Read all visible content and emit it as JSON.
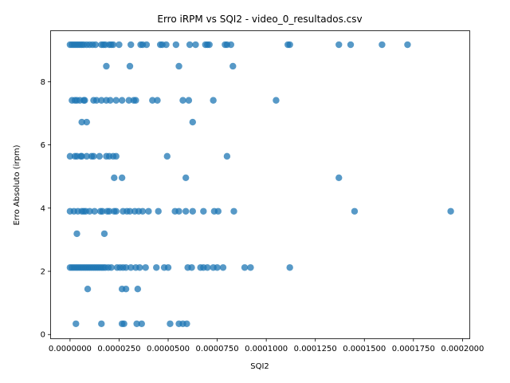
{
  "chart_data": {
    "type": "scatter",
    "title": "Erro iRPM vs SQI2 - video_0_resultados.csv",
    "xlabel": "SQI2",
    "ylabel": "Erro Absoluto (irpm)",
    "xlim": [
      -9.7e-06,
      0.0002035
    ],
    "ylim": [
      -0.12,
      9.6
    ],
    "xticks": [
      0,
      2.5e-05,
      5e-05,
      7.5e-05,
      0.0001,
      0.000125,
      0.00015,
      0.000175,
      0.0002
    ],
    "xtick_labels": [
      "0.0000000",
      "0.0000250",
      "0.0000500",
      "0.0000750",
      "0.0001000",
      "0.0001250",
      "0.0001500",
      "0.0001750",
      "0.0002000"
    ],
    "yticks": [
      0,
      2,
      4,
      6,
      8
    ],
    "ytick_labels": [
      "0",
      "2",
      "4",
      "6",
      "8"
    ],
    "grid": false,
    "marker_color": "#1f77b4",
    "series": [
      {
        "name": "erro_vs_sqi2",
        "points": [
          {
            "x": 0.0,
            "y": 9.17
          },
          {
            "x": 1e-06,
            "y": 9.17
          },
          {
            "x": 2e-06,
            "y": 9.17
          },
          {
            "x": 3e-06,
            "y": 9.17
          },
          {
            "x": 4e-06,
            "y": 9.17
          },
          {
            "x": 5e-06,
            "y": 9.17
          },
          {
            "x": 6e-06,
            "y": 9.17
          },
          {
            "x": 7e-06,
            "y": 9.17
          },
          {
            "x": 8.5e-06,
            "y": 9.17
          },
          {
            "x": 1e-05,
            "y": 9.17
          },
          {
            "x": 1.15e-05,
            "y": 9.17
          },
          {
            "x": 1.3e-05,
            "y": 9.17
          },
          {
            "x": 1.6e-05,
            "y": 9.17
          },
          {
            "x": 1.7e-05,
            "y": 9.17
          },
          {
            "x": 1.8e-05,
            "y": 9.17
          },
          {
            "x": 2e-05,
            "y": 9.17
          },
          {
            "x": 2.1e-05,
            "y": 9.17
          },
          {
            "x": 2.2e-05,
            "y": 9.17
          },
          {
            "x": 2.5e-05,
            "y": 9.17
          },
          {
            "x": 3.1e-05,
            "y": 9.17
          },
          {
            "x": 3.6e-05,
            "y": 9.17
          },
          {
            "x": 3.7e-05,
            "y": 9.17
          },
          {
            "x": 3.9e-05,
            "y": 9.17
          },
          {
            "x": 4.6e-05,
            "y": 9.17
          },
          {
            "x": 4.7e-05,
            "y": 9.17
          },
          {
            "x": 4.9e-05,
            "y": 9.17
          },
          {
            "x": 5.4e-05,
            "y": 9.17
          },
          {
            "x": 6.1e-05,
            "y": 9.17
          },
          {
            "x": 6.4e-05,
            "y": 9.17
          },
          {
            "x": 6.9e-05,
            "y": 9.17
          },
          {
            "x": 7e-05,
            "y": 9.17
          },
          {
            "x": 7.1e-05,
            "y": 9.17
          },
          {
            "x": 7.9e-05,
            "y": 9.17
          },
          {
            "x": 8e-05,
            "y": 9.17
          },
          {
            "x": 8.2e-05,
            "y": 9.17
          },
          {
            "x": 0.000111,
            "y": 9.17
          },
          {
            "x": 0.000112,
            "y": 9.17
          },
          {
            "x": 0.000137,
            "y": 9.17
          },
          {
            "x": 0.000143,
            "y": 9.17
          },
          {
            "x": 0.000159,
            "y": 9.17
          },
          {
            "x": 0.000172,
            "y": 9.17
          },
          {
            "x": 1.85e-05,
            "y": 8.49
          },
          {
            "x": 3.05e-05,
            "y": 8.49
          },
          {
            "x": 5.55e-05,
            "y": 8.49
          },
          {
            "x": 8.3e-05,
            "y": 8.49
          },
          {
            "x": 1e-06,
            "y": 7.41
          },
          {
            "x": 2.5e-06,
            "y": 7.41
          },
          {
            "x": 3.5e-06,
            "y": 7.41
          },
          {
            "x": 5e-06,
            "y": 7.41
          },
          {
            "x": 7e-06,
            "y": 7.41
          },
          {
            "x": 7.5e-06,
            "y": 7.41
          },
          {
            "x": 1.2e-05,
            "y": 7.41
          },
          {
            "x": 1.35e-05,
            "y": 7.41
          },
          {
            "x": 1.6e-05,
            "y": 7.41
          },
          {
            "x": 1.85e-05,
            "y": 7.41
          },
          {
            "x": 2.05e-05,
            "y": 7.41
          },
          {
            "x": 2.35e-05,
            "y": 7.41
          },
          {
            "x": 2.65e-05,
            "y": 7.41
          },
          {
            "x": 3e-05,
            "y": 7.41
          },
          {
            "x": 3.25e-05,
            "y": 7.41
          },
          {
            "x": 3.35e-05,
            "y": 7.41
          },
          {
            "x": 4.2e-05,
            "y": 7.41
          },
          {
            "x": 4.45e-05,
            "y": 7.41
          },
          {
            "x": 5.75e-05,
            "y": 7.41
          },
          {
            "x": 6.05e-05,
            "y": 7.41
          },
          {
            "x": 7.3e-05,
            "y": 7.41
          },
          {
            "x": 0.000105,
            "y": 7.41
          },
          {
            "x": 6e-06,
            "y": 6.72
          },
          {
            "x": 8.5e-06,
            "y": 6.72
          },
          {
            "x": 6.25e-05,
            "y": 6.72
          },
          {
            "x": 0.0,
            "y": 5.64
          },
          {
            "x": 2.5e-06,
            "y": 5.64
          },
          {
            "x": 3.5e-06,
            "y": 5.64
          },
          {
            "x": 5.5e-06,
            "y": 5.64
          },
          {
            "x": 6e-06,
            "y": 5.64
          },
          {
            "x": 8.5e-06,
            "y": 5.64
          },
          {
            "x": 1.1e-05,
            "y": 5.64
          },
          {
            "x": 1.2e-05,
            "y": 5.64
          },
          {
            "x": 1.5e-05,
            "y": 5.64
          },
          {
            "x": 1.85e-05,
            "y": 5.64
          },
          {
            "x": 2e-05,
            "y": 5.64
          },
          {
            "x": 2.2e-05,
            "y": 5.64
          },
          {
            "x": 2.35e-05,
            "y": 5.64
          },
          {
            "x": 4.95e-05,
            "y": 5.64
          },
          {
            "x": 8e-05,
            "y": 5.64
          },
          {
            "x": 2.25e-05,
            "y": 4.96
          },
          {
            "x": 2.65e-05,
            "y": 4.96
          },
          {
            "x": 5.9e-05,
            "y": 4.96
          },
          {
            "x": 0.000137,
            "y": 4.96
          },
          {
            "x": 0.0,
            "y": 3.9
          },
          {
            "x": 2e-06,
            "y": 3.9
          },
          {
            "x": 4e-06,
            "y": 3.9
          },
          {
            "x": 6e-06,
            "y": 3.9
          },
          {
            "x": 7e-06,
            "y": 3.9
          },
          {
            "x": 8e-06,
            "y": 3.9
          },
          {
            "x": 1e-05,
            "y": 3.9
          },
          {
            "x": 1.25e-05,
            "y": 3.9
          },
          {
            "x": 1.55e-05,
            "y": 3.9
          },
          {
            "x": 1.65e-05,
            "y": 3.9
          },
          {
            "x": 1.9e-05,
            "y": 3.9
          },
          {
            "x": 2e-05,
            "y": 3.9
          },
          {
            "x": 2.25e-05,
            "y": 3.9
          },
          {
            "x": 2.35e-05,
            "y": 3.9
          },
          {
            "x": 2.7e-05,
            "y": 3.9
          },
          {
            "x": 2.9e-05,
            "y": 3.9
          },
          {
            "x": 3.05e-05,
            "y": 3.9
          },
          {
            "x": 3.3e-05,
            "y": 3.9
          },
          {
            "x": 3.5e-05,
            "y": 3.9
          },
          {
            "x": 3.7e-05,
            "y": 3.9
          },
          {
            "x": 4e-05,
            "y": 3.9
          },
          {
            "x": 4.5e-05,
            "y": 3.9
          },
          {
            "x": 5.35e-05,
            "y": 3.9
          },
          {
            "x": 5.55e-05,
            "y": 3.9
          },
          {
            "x": 5.9e-05,
            "y": 3.9
          },
          {
            "x": 6.25e-05,
            "y": 3.9
          },
          {
            "x": 6.8e-05,
            "y": 3.9
          },
          {
            "x": 7.35e-05,
            "y": 3.9
          },
          {
            "x": 7.55e-05,
            "y": 3.9
          },
          {
            "x": 8.35e-05,
            "y": 3.9
          },
          {
            "x": 0.000145,
            "y": 3.9
          },
          {
            "x": 0.000194,
            "y": 3.9
          },
          {
            "x": 3.5e-06,
            "y": 3.19
          },
          {
            "x": 1.75e-05,
            "y": 3.19
          },
          {
            "x": 0.0,
            "y": 2.12
          },
          {
            "x": 1e-06,
            "y": 2.12
          },
          {
            "x": 2e-06,
            "y": 2.12
          },
          {
            "x": 3e-06,
            "y": 2.12
          },
          {
            "x": 4e-06,
            "y": 2.12
          },
          {
            "x": 5e-06,
            "y": 2.12
          },
          {
            "x": 6e-06,
            "y": 2.12
          },
          {
            "x": 7e-06,
            "y": 2.12
          },
          {
            "x": 8e-06,
            "y": 2.12
          },
          {
            "x": 9e-06,
            "y": 2.12
          },
          {
            "x": 1e-05,
            "y": 2.12
          },
          {
            "x": 1.1e-05,
            "y": 2.12
          },
          {
            "x": 1.2e-05,
            "y": 2.12
          },
          {
            "x": 1.3e-05,
            "y": 2.12
          },
          {
            "x": 1.4e-05,
            "y": 2.12
          },
          {
            "x": 1.5e-05,
            "y": 2.12
          },
          {
            "x": 1.6e-05,
            "y": 2.12
          },
          {
            "x": 1.7e-05,
            "y": 2.12
          },
          {
            "x": 1.8e-05,
            "y": 2.12
          },
          {
            "x": 1.95e-05,
            "y": 2.12
          },
          {
            "x": 2.1e-05,
            "y": 2.12
          },
          {
            "x": 2.4e-05,
            "y": 2.12
          },
          {
            "x": 2.55e-05,
            "y": 2.12
          },
          {
            "x": 2.7e-05,
            "y": 2.12
          },
          {
            "x": 2.85e-05,
            "y": 2.12
          },
          {
            "x": 3.1e-05,
            "y": 2.12
          },
          {
            "x": 3.35e-05,
            "y": 2.12
          },
          {
            "x": 3.55e-05,
            "y": 2.12
          },
          {
            "x": 3.85e-05,
            "y": 2.12
          },
          {
            "x": 4.4e-05,
            "y": 2.12
          },
          {
            "x": 4.8e-05,
            "y": 2.12
          },
          {
            "x": 5e-05,
            "y": 2.12
          },
          {
            "x": 6e-05,
            "y": 2.12
          },
          {
            "x": 6.2e-05,
            "y": 2.12
          },
          {
            "x": 6.65e-05,
            "y": 2.12
          },
          {
            "x": 6.8e-05,
            "y": 2.12
          },
          {
            "x": 7e-05,
            "y": 2.12
          },
          {
            "x": 7.3e-05,
            "y": 2.12
          },
          {
            "x": 7.5e-05,
            "y": 2.12
          },
          {
            "x": 7.8e-05,
            "y": 2.12
          },
          {
            "x": 8.9e-05,
            "y": 2.12
          },
          {
            "x": 9.2e-05,
            "y": 2.12
          },
          {
            "x": 0.000112,
            "y": 2.12
          },
          {
            "x": 9e-06,
            "y": 1.44
          },
          {
            "x": 2.65e-05,
            "y": 1.44
          },
          {
            "x": 2.85e-05,
            "y": 1.44
          },
          {
            "x": 3.45e-05,
            "y": 1.44
          },
          {
            "x": 3e-06,
            "y": 0.34
          },
          {
            "x": 1.6e-05,
            "y": 0.34
          },
          {
            "x": 2.65e-05,
            "y": 0.34
          },
          {
            "x": 2.75e-05,
            "y": 0.34
          },
          {
            "x": 3.4e-05,
            "y": 0.34
          },
          {
            "x": 3.65e-05,
            "y": 0.34
          },
          {
            "x": 5.1e-05,
            "y": 0.34
          },
          {
            "x": 5.55e-05,
            "y": 0.34
          },
          {
            "x": 5.75e-05,
            "y": 0.34
          },
          {
            "x": 5.95e-05,
            "y": 0.34
          }
        ]
      }
    ]
  }
}
